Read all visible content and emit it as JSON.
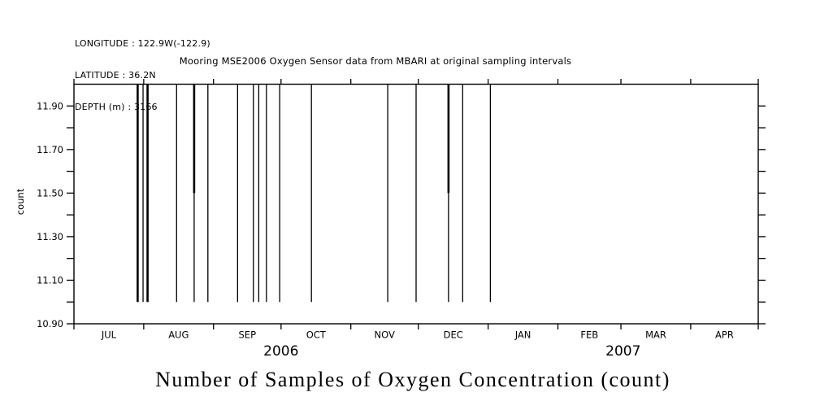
{
  "page": {
    "background": "#ffffff",
    "ink_color": "#000000"
  },
  "header": {
    "longitude": "LONGITUDE : 122.9W(-122.9)",
    "latitude": "LATITUDE : 36.2N",
    "depth": "DEPTH (m) : 3166"
  },
  "plot_title": "Mooring MSE2006 Oxygen Sensor data from MBARI at original sampling intervals",
  "bottom_title": "Number of Samples of Oxygen Concentration (count)",
  "chart_data": {
    "type": "line",
    "title": "Mooring MSE2006 Oxygen Sensor data from MBARI at original sampling intervals",
    "caption": "Number of Samples of Oxygen Concentration (count)",
    "ylabel": "count",
    "ylim": [
      10.9,
      12.0
    ],
    "y_minor_tick_step": 0.1,
    "y_labeled_ticks": [
      {
        "value": 10.9,
        "label": "10.90"
      },
      {
        "value": 11.1,
        "label": "11.10"
      },
      {
        "value": 11.3,
        "label": "11.30"
      },
      {
        "value": 11.5,
        "label": "11.50"
      },
      {
        "value": 11.7,
        "label": "11.70"
      },
      {
        "value": 11.9,
        "label": "11.90"
      }
    ],
    "baseline_value": 12.0,
    "grid": "off",
    "x_axis": {
      "start_date": "2006-07-01",
      "end_date": "2007-05-01",
      "total_days": 304,
      "months": [
        {
          "label": "JUL",
          "days": 31
        },
        {
          "label": "AUG",
          "days": 31
        },
        {
          "label": "SEP",
          "days": 30
        },
        {
          "label": "OCT",
          "days": 31
        },
        {
          "label": "NOV",
          "days": 30
        },
        {
          "label": "DEC",
          "days": 31
        },
        {
          "label": "JAN",
          "days": 31
        },
        {
          "label": "FEB",
          "days": 28
        },
        {
          "label": "MAR",
          "days": 31
        },
        {
          "label": "APR",
          "days": 30
        }
      ],
      "years": [
        {
          "label": "2006",
          "center_day": 92
        },
        {
          "label": "2007",
          "center_day": 244
        }
      ]
    },
    "series_description": "Sample count holds at 12 (top border) with brief downward spikes",
    "dips": [
      {
        "date": "2006-07-29",
        "day": 28.3,
        "to": 11.0,
        "weight": 2.6
      },
      {
        "date": "2006-07-31",
        "day": 30.7,
        "to": 11.0,
        "weight": 1.3
      },
      {
        "date": "2006-08-02",
        "day": 32.7,
        "to": 11.0,
        "weight": 2.6
      },
      {
        "date": "2006-08-15",
        "day": 45.6,
        "to": 11.0,
        "weight": 1.3
      },
      {
        "date": "2006-08-23",
        "day": 53.4,
        "to": 11.5,
        "weight": 2.6,
        "thin_to": 11.0
      },
      {
        "date": "2006-08-29",
        "day": 59.5,
        "to": 11.0,
        "weight": 1.3
      },
      {
        "date": "2006-09-11",
        "day": 72.7,
        "to": 11.0,
        "weight": 1.3
      },
      {
        "date": "2006-09-18",
        "day": 79.7,
        "to": 11.0,
        "weight": 1.3
      },
      {
        "date": "2006-09-21",
        "day": 82.1,
        "to": 11.0,
        "weight": 1.3
      },
      {
        "date": "2006-09-24",
        "day": 85.5,
        "to": 11.0,
        "weight": 1.3
      },
      {
        "date": "2006-09-30",
        "day": 91.4,
        "to": 11.0,
        "weight": 1.3
      },
      {
        "date": "2006-10-14",
        "day": 105.5,
        "to": 11.0,
        "weight": 1.3
      },
      {
        "date": "2006-11-18",
        "day": 139.4,
        "to": 11.0,
        "weight": 1.3
      },
      {
        "date": "2006-11-30",
        "day": 152.0,
        "to": 11.0,
        "weight": 1.3
      },
      {
        "date": "2006-12-15",
        "day": 166.4,
        "to": 11.5,
        "weight": 2.6,
        "thin_to": 11.0
      },
      {
        "date": "2006-12-21",
        "day": 172.7,
        "to": 11.0,
        "weight": 1.3
      },
      {
        "date": "2007-01-02",
        "day": 185.0,
        "to": 11.0,
        "weight": 1.3
      }
    ]
  }
}
